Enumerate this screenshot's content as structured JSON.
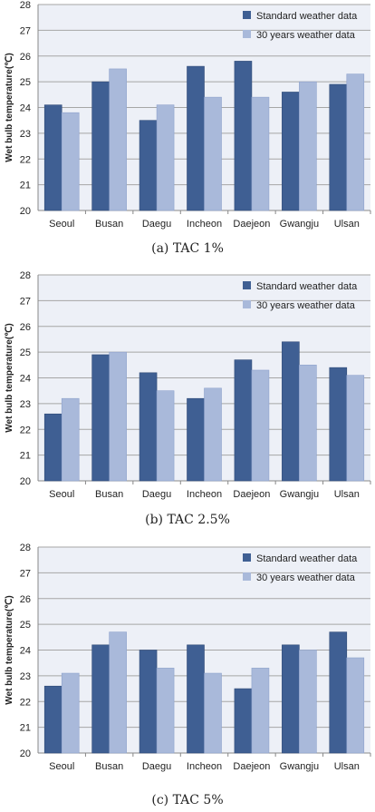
{
  "colors": {
    "standard": "#3F5F93",
    "thirty_years": "#A9B9DA",
    "plot_bg": "#EDF0F7",
    "grid": "#A6A6A6"
  },
  "chart_data": [
    {
      "type": "bar",
      "caption": "(a)  TAC 1%",
      "ylabel": "Wet bulb temperature(℃)",
      "ylim": [
        20,
        28
      ],
      "yticks": [
        "20",
        "21",
        "22",
        "23",
        "24",
        "25",
        "26",
        "27",
        "28"
      ],
      "categories": [
        "Seoul",
        "Busan",
        "Daegu",
        "Incheon",
        "Daejeon",
        "Gwangju",
        "Ulsan"
      ],
      "series": [
        {
          "name": "Standard weather data",
          "values": [
            24.1,
            25.0,
            23.5,
            25.6,
            25.8,
            24.6,
            24.9
          ]
        },
        {
          "name": "30 years weather data",
          "values": [
            23.8,
            25.5,
            24.1,
            24.4,
            24.4,
            25.0,
            25.3
          ]
        }
      ],
      "legend_position": "top-right",
      "grid": true
    },
    {
      "type": "bar",
      "caption": "(b)  TAC 2.5%",
      "ylabel": "Wet bulb temperature(℃)",
      "ylim": [
        20,
        28
      ],
      "yticks": [
        "20",
        "21",
        "22",
        "23",
        "24",
        "25",
        "26",
        "27",
        "28"
      ],
      "categories": [
        "Seoul",
        "Busan",
        "Daegu",
        "Incheon",
        "Daejeon",
        "Gwangju",
        "Ulsan"
      ],
      "series": [
        {
          "name": "Standard weather data",
          "values": [
            22.6,
            24.9,
            24.2,
            23.2,
            24.7,
            25.4,
            24.4
          ]
        },
        {
          "name": "30 years weather data",
          "values": [
            23.2,
            25.0,
            23.5,
            23.6,
            24.3,
            24.5,
            24.1
          ]
        }
      ],
      "legend_position": "top-right",
      "grid": true
    },
    {
      "type": "bar",
      "caption": "(c)  TAC 5%",
      "ylabel": "Wet bulb temperature(℃)",
      "ylim": [
        20,
        28
      ],
      "yticks": [
        "20",
        "21",
        "22",
        "23",
        "24",
        "25",
        "26",
        "27",
        "28"
      ],
      "categories": [
        "Seoul",
        "Busan",
        "Daegu",
        "Incheon",
        "Daejeon",
        "Gwangju",
        "Ulsan"
      ],
      "series": [
        {
          "name": "Standard weather data",
          "values": [
            22.6,
            24.2,
            24.0,
            24.2,
            22.5,
            24.2,
            24.7
          ]
        },
        {
          "name": "30 years weather data",
          "values": [
            23.1,
            24.7,
            23.3,
            23.1,
            23.3,
            24.0,
            23.7
          ]
        }
      ],
      "legend_position": "top-right",
      "grid": true
    }
  ]
}
